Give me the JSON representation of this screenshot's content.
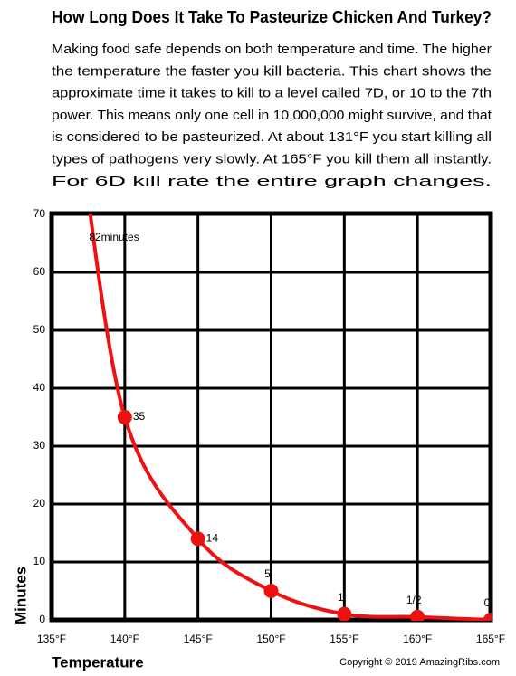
{
  "chart_data": {
    "type": "line",
    "title": "How Long Does It Take To Pasteurize Chicken And Turkey?",
    "description": [
      "Making food safe depends on both temperature and time. The higher",
      "the temperature the faster you kill bacteria. This chart shows the",
      "approximate time it takes to kill to a level called 7D, or 10 to the 7th",
      "power. This means only one cell in 10,000,000 might survive, and that",
      "is considered to be pasteurized. At about 131°F you start killing all",
      "types of pathogens very slowly. At 165°F you kill them all instantly.",
      "For 6D kill rate the entire graph changes."
    ],
    "x_label": "Temperature",
    "y_label": "Minutes",
    "copyright": "Copyright © 2019 AmazingRibs.com",
    "x": [
      137,
      140,
      145,
      150,
      155,
      160,
      165
    ],
    "series": [
      {
        "color": "#ee1111",
        "values": [
          82,
          35,
          14,
          5,
          1,
          0.5,
          0
        ],
        "value_labels": [
          "82minutes",
          "35",
          "14",
          "5",
          "1",
          "1/2",
          "0"
        ]
      }
    ],
    "xlim": [
      135,
      165
    ],
    "xticks": [
      {
        "value": 135,
        "label": "135°F"
      },
      {
        "value": 140,
        "label": "140°F"
      },
      {
        "value": 145,
        "label": "145°F"
      },
      {
        "value": 150,
        "label": "150°F"
      },
      {
        "value": 155,
        "label": "155°F"
      },
      {
        "value": 160,
        "label": "160°F"
      },
      {
        "value": 165,
        "label": "165°F"
      }
    ],
    "ylim": [
      0,
      70
    ],
    "yticks": [
      0,
      10,
      20,
      30,
      40,
      50,
      60,
      70
    ],
    "grid": true
  }
}
